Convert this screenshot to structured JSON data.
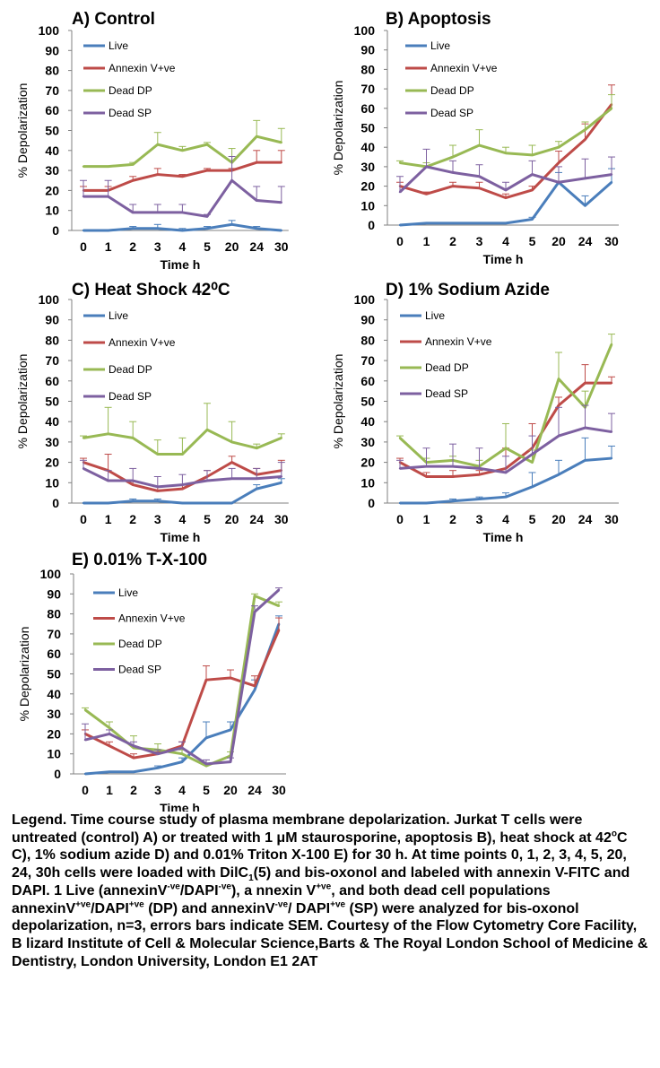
{
  "chart_data": [
    {
      "type": "line",
      "title": "A) Control",
      "xlabel": "Time h",
      "ylabel": "% Depolarization",
      "ylim": [
        0,
        100
      ],
      "categories": [
        "0",
        "1",
        "2",
        "3",
        "4",
        "5",
        "20",
        "24",
        "30"
      ],
      "y_ticks": [
        "0",
        "10",
        "20",
        "30",
        "40",
        "50",
        "60",
        "70",
        "80",
        "90",
        "100"
      ],
      "legend_placement": "top-left",
      "series": [
        {
          "name": "Live",
          "color": "#4a7ebb",
          "values": [
            0,
            0,
            1,
            1,
            0,
            1,
            3,
            1,
            0
          ],
          "errors": [
            0,
            0,
            1,
            2,
            1,
            1,
            2,
            1,
            0
          ]
        },
        {
          "name": "Annexin V+ve",
          "color": "#be4b48",
          "values": [
            20,
            20,
            25,
            28,
            27,
            30,
            30,
            34,
            34
          ],
          "errors": [
            2,
            2,
            2,
            3,
            1,
            1,
            1,
            6,
            6
          ]
        },
        {
          "name": "Dead DP",
          "color": "#98b954",
          "values": [
            32,
            32,
            33,
            43,
            40,
            43,
            34,
            47,
            44
          ],
          "errors": [
            0,
            0,
            1,
            6,
            2,
            1,
            7,
            8,
            7
          ]
        },
        {
          "name": "Dead SP",
          "color": "#7d60a0",
          "values": [
            17,
            17,
            9,
            9,
            9,
            7,
            25,
            15,
            14
          ],
          "errors": [
            8,
            8,
            4,
            4,
            4,
            1,
            12,
            7,
            8
          ]
        }
      ]
    },
    {
      "type": "line",
      "title": "B) Apoptosis",
      "xlabel": "Time h",
      "ylabel": "% Depolarization",
      "ylim": [
        0,
        100
      ],
      "categories": [
        "0",
        "1",
        "2",
        "3",
        "4",
        "5",
        "20",
        "24",
        "30"
      ],
      "y_ticks": [
        "0",
        "10",
        "20",
        "30",
        "40",
        "50",
        "60",
        "70",
        "80",
        "90",
        "100"
      ],
      "legend_placement": "top-left",
      "series": [
        {
          "name": "Live",
          "color": "#4a7ebb",
          "values": [
            0,
            1,
            1,
            1,
            1,
            3,
            22,
            10,
            22
          ],
          "errors": [
            0,
            0,
            0,
            0,
            0,
            1,
            5,
            5,
            7
          ]
        },
        {
          "name": "Annexin V+ve",
          "color": "#be4b48",
          "values": [
            20,
            16,
            20,
            19,
            14,
            18,
            32,
            44,
            62
          ],
          "errors": [
            2,
            1,
            2,
            3,
            2,
            2,
            6,
            8,
            10
          ]
        },
        {
          "name": "Dead DP",
          "color": "#98b954",
          "values": [
            32,
            30,
            35,
            41,
            37,
            36,
            40,
            49,
            60
          ],
          "errors": [
            1,
            2,
            6,
            8,
            3,
            5,
            3,
            4,
            7
          ]
        },
        {
          "name": "Dead SP",
          "color": "#7d60a0",
          "values": [
            17,
            30,
            27,
            25,
            18,
            26,
            22,
            24,
            26
          ],
          "errors": [
            8,
            9,
            6,
            6,
            4,
            7,
            8,
            10,
            9
          ]
        }
      ]
    },
    {
      "type": "line",
      "title": "C) Heat Shock 42⁰C",
      "xlabel": "Time h",
      "ylabel": "% Depolarization",
      "ylim": [
        0,
        100
      ],
      "categories": [
        "0",
        "1",
        "2",
        "3",
        "4",
        "5",
        "20",
        "24",
        "30"
      ],
      "y_ticks": [
        "0",
        "10",
        "20",
        "30",
        "40",
        "50",
        "60",
        "70",
        "80",
        "90",
        "100"
      ],
      "legend_placement": "top-left",
      "series": [
        {
          "name": "Live",
          "color": "#4a7ebb",
          "values": [
            0,
            0,
            1,
            1,
            0,
            0,
            0,
            7,
            10
          ],
          "errors": [
            0,
            0,
            1,
            1,
            0,
            0,
            0,
            2,
            2
          ]
        },
        {
          "name": "Annexin V+ve",
          "color": "#be4b48",
          "values": [
            20,
            16,
            9,
            6,
            7,
            13,
            20,
            14,
            16
          ],
          "errors": [
            2,
            8,
            2,
            2,
            2,
            3,
            3,
            3,
            5
          ]
        },
        {
          "name": "Dead DP",
          "color": "#98b954",
          "values": [
            32,
            34,
            32,
            24,
            24,
            36,
            30,
            27,
            32
          ],
          "errors": [
            1,
            13,
            8,
            7,
            8,
            13,
            10,
            2,
            2
          ]
        },
        {
          "name": "Dead SP",
          "color": "#7d60a0",
          "values": [
            17,
            11,
            11,
            8,
            9,
            11,
            12,
            12,
            13
          ],
          "errors": [
            4,
            5,
            6,
            5,
            5,
            5,
            5,
            5,
            7
          ]
        }
      ]
    },
    {
      "type": "line",
      "title": "D) 1% Sodium Azide",
      "xlabel": "Time h",
      "ylabel": "% Depolarization",
      "ylim": [
        0,
        100
      ],
      "categories": [
        "0",
        "1",
        "2",
        "3",
        "4",
        "5",
        "20",
        "24",
        "30"
      ],
      "y_ticks": [
        "0",
        "10",
        "20",
        "30",
        "40",
        "50",
        "60",
        "70",
        "80",
        "90",
        "100"
      ],
      "legend_placement": "top-left",
      "series": [
        {
          "name": "Live",
          "color": "#4a7ebb",
          "values": [
            0,
            0,
            1,
            2,
            3,
            8,
            14,
            21,
            22
          ],
          "errors": [
            0,
            0,
            1,
            1,
            2,
            7,
            7,
            11,
            6
          ]
        },
        {
          "name": "Annexin V+ve",
          "color": "#be4b48",
          "values": [
            20,
            13,
            13,
            14,
            17,
            27,
            48,
            59,
            59
          ],
          "errors": [
            2,
            2,
            3,
            2,
            10,
            12,
            4,
            9,
            3
          ]
        },
        {
          "name": "Dead DP",
          "color": "#98b954",
          "values": [
            32,
            20,
            21,
            18,
            27,
            20,
            61,
            47,
            78
          ],
          "errors": [
            1,
            2,
            2,
            3,
            12,
            6,
            13,
            8,
            5
          ]
        },
        {
          "name": "Dead SP",
          "color": "#7d60a0",
          "values": [
            17,
            18,
            18,
            17,
            15,
            24,
            33,
            37,
            35
          ],
          "errors": [
            4,
            9,
            11,
            10,
            8,
            9,
            14,
            11,
            9
          ]
        }
      ]
    },
    {
      "type": "line",
      "title": "E) 0.01% T-X-100",
      "xlabel": "Time h",
      "ylabel": "% Depolarization",
      "ylim": [
        0,
        100
      ],
      "categories": [
        "0",
        "1",
        "2",
        "3",
        "4",
        "5",
        "20",
        "24",
        "30"
      ],
      "y_ticks": [
        "0",
        "10",
        "20",
        "30",
        "40",
        "50",
        "60",
        "70",
        "80",
        "90",
        "100"
      ],
      "legend_placement": "top-left",
      "series": [
        {
          "name": "Live",
          "color": "#4a7ebb",
          "values": [
            0,
            1,
            1,
            3,
            6,
            18,
            22,
            42,
            75
          ],
          "errors": [
            0,
            0,
            0,
            1,
            2,
            8,
            4,
            5,
            4
          ]
        },
        {
          "name": "Annexin V+ve",
          "color": "#be4b48",
          "values": [
            20,
            14,
            8,
            10,
            14,
            47,
            48,
            44,
            72
          ],
          "errors": [
            2,
            2,
            2,
            1,
            2,
            7,
            4,
            5,
            6
          ]
        },
        {
          "name": "Dead DP",
          "color": "#98b954",
          "values": [
            32,
            23,
            13,
            12,
            10,
            4,
            9,
            89,
            84
          ],
          "errors": [
            1,
            3,
            6,
            3,
            2,
            1,
            2,
            1,
            2
          ]
        },
        {
          "name": "Dead SP",
          "color": "#7d60a0",
          "values": [
            17,
            20,
            14,
            10,
            13,
            5,
            6,
            81,
            92
          ],
          "errors": [
            8,
            2,
            2,
            2,
            3,
            2,
            2,
            3,
            1
          ]
        }
      ]
    }
  ],
  "caption": {
    "p1": "Legend. Time course study of plasma membrane depolarization. Jurkat T cells were untreated (control) A) or treated with 1 μM staurosporine, apoptosis B), heat shock at 42",
    "p1_sup": "o",
    "p1_b": "C C), 1% sodium azide D) and 0.01% Triton X-100 E) for 30 h. At time points 0, 1, 2, 3, 4, 5, 20, 24, 30h cells were loaded with DilC",
    "p1_sub": "1",
    "p1_c": "(5) and bis-oxonol and labeled with annexin V-FITC and DAPI. 1 Live (annexinV",
    "sup_neg": "-ve",
    "slash_dapi": "/DAPI",
    "p1_d": "), a nnexin V",
    "sup_pos": "+ve",
    "p1_e": ", and both dead cell populations annexinV",
    "p1_f": " (DP) and annexinV",
    "slash_dapi2": "/ DAPI",
    "p1_g": " (SP) were analyzed for bis-oxonol depolarization, n=3, errors bars indicate SEM. Courtesy of the Flow Cytometry Core Facility, B lizard Institute of Cell & Molecular Science,Barts & The Royal London School of Medicine & Dentistry, London University, London E1 2AT"
  }
}
